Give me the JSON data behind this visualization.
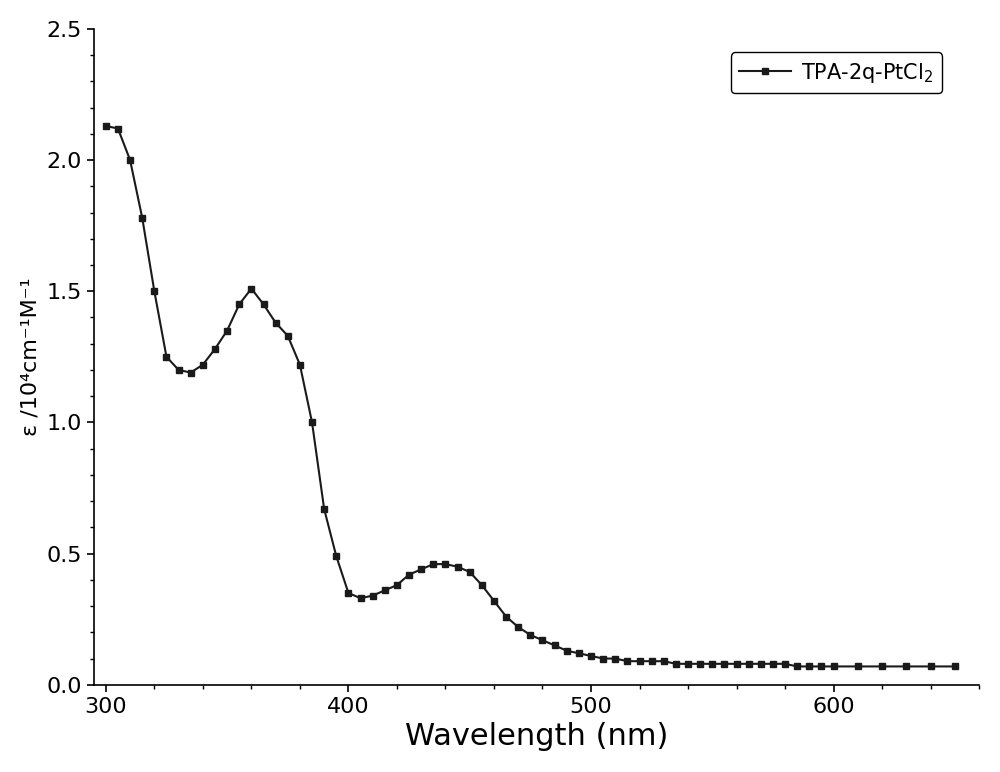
{
  "x": [
    300,
    305,
    310,
    315,
    320,
    325,
    330,
    335,
    340,
    345,
    350,
    355,
    360,
    365,
    370,
    375,
    380,
    385,
    390,
    395,
    400,
    405,
    410,
    415,
    420,
    425,
    430,
    435,
    440,
    445,
    450,
    455,
    460,
    465,
    470,
    475,
    480,
    485,
    490,
    495,
    500,
    505,
    510,
    515,
    520,
    525,
    530,
    535,
    540,
    545,
    550,
    555,
    560,
    565,
    570,
    575,
    580,
    585,
    590,
    595,
    600,
    610,
    620,
    630,
    640,
    650
  ],
  "y": [
    2.13,
    2.12,
    2.0,
    1.78,
    1.5,
    1.25,
    1.2,
    1.19,
    1.22,
    1.28,
    1.35,
    1.45,
    1.51,
    1.45,
    1.38,
    1.33,
    1.22,
    1.0,
    0.67,
    0.49,
    0.35,
    0.33,
    0.34,
    0.36,
    0.38,
    0.42,
    0.44,
    0.46,
    0.46,
    0.45,
    0.43,
    0.38,
    0.32,
    0.26,
    0.22,
    0.19,
    0.17,
    0.15,
    0.13,
    0.12,
    0.11,
    0.1,
    0.1,
    0.09,
    0.09,
    0.09,
    0.09,
    0.08,
    0.08,
    0.08,
    0.08,
    0.08,
    0.08,
    0.08,
    0.08,
    0.08,
    0.08,
    0.07,
    0.07,
    0.07,
    0.07,
    0.07,
    0.07,
    0.07,
    0.07,
    0.07
  ],
  "xlabel": "Wavelength (nm)",
  "ylabel": "ε /10⁴cm⁻¹M⁻¹",
  "legend_label": "TPA-2q-PtCl$_2$",
  "xlim": [
    295,
    660
  ],
  "ylim": [
    0.0,
    2.5
  ],
  "xticks": [
    300,
    400,
    500,
    600
  ],
  "yticks": [
    0.0,
    0.5,
    1.0,
    1.5,
    2.0,
    2.5
  ],
  "line_color": "#1a1a1a",
  "marker": "s",
  "marker_size": 4.5,
  "line_width": 1.5,
  "background_color": "#ffffff",
  "xlabel_fontsize": 22,
  "ylabel_fontsize": 16,
  "tick_fontsize": 16,
  "legend_fontsize": 15
}
